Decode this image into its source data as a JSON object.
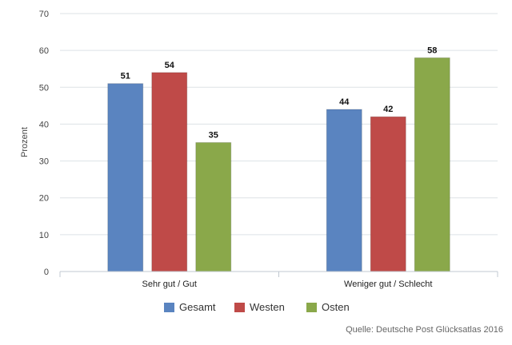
{
  "chart_data": {
    "type": "bar",
    "categories": [
      "Sehr gut / Gut",
      "Weniger gut / Schlecht"
    ],
    "series": [
      {
        "name": "Gesamt",
        "color": "#5a84c0",
        "values": [
          51,
          44
        ]
      },
      {
        "name": "Westen",
        "color": "#bf4a48",
        "values": [
          54,
          42
        ]
      },
      {
        "name": "Osten",
        "color": "#8aa84a",
        "values": [
          35,
          58
        ]
      }
    ],
    "ylabel": "Prozent",
    "ylim": [
      0,
      70
    ],
    "yticks": [
      0,
      10,
      20,
      30,
      40,
      50,
      60,
      70
    ],
    "grid": true,
    "legend_position": "bottom",
    "data_labels": true
  },
  "source_note": "Quelle: Deutsche Post Glücksatlas 2016"
}
